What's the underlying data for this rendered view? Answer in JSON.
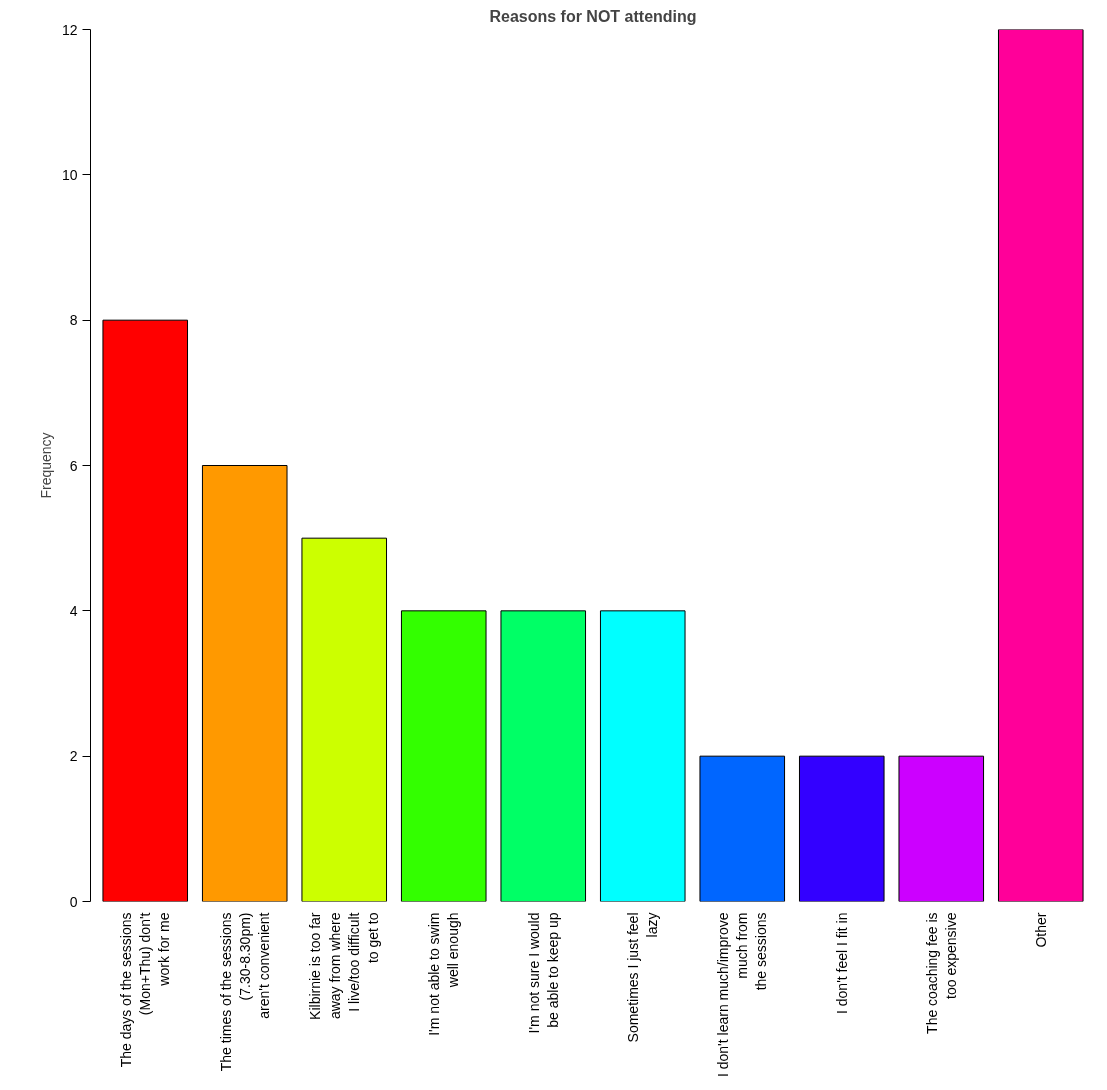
{
  "chart_data": {
    "type": "bar",
    "title": "Reasons for NOT attending",
    "ylabel": "Frequency",
    "categories": [
      "The days of the sessions\n(Mon+Thu) don't\nwork for me",
      "The times of the sessions\n(7.30-8.30pm)\naren't convenient",
      "Kilbirnie is too far\naway from where\nI live/too difficult\nto get to",
      "I'm not able to swim\nwell enough",
      "I'm not sure I would\nbe able to keep up",
      "Sometimes I just feel\nlazy",
      "I don't learn much/improve\nmuch from\nthe sessions",
      "I don't feel I fit in",
      "The coaching fee is\ntoo expensive",
      "Other"
    ],
    "values": [
      8,
      6,
      5,
      4,
      4,
      4,
      2,
      2,
      2,
      12
    ],
    "colors": [
      "#ff0000",
      "#ff9900",
      "#ccff00",
      "#33ff00",
      "#00ff66",
      "#00ffff",
      "#0066ff",
      "#3300ff",
      "#cc00ff",
      "#ff0099"
    ],
    "ylim": [
      0,
      12
    ],
    "yticks": [
      0,
      2,
      4,
      6,
      8,
      10,
      12
    ],
    "grid": false
  }
}
